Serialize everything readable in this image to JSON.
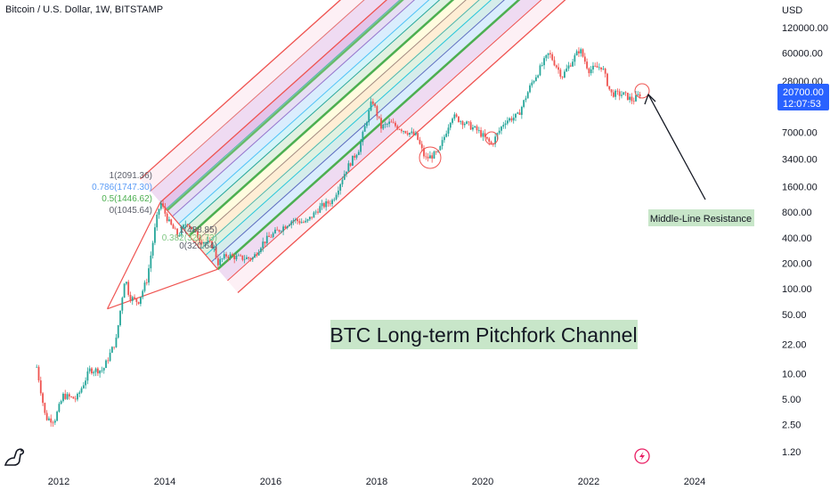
{
  "header": {
    "symbol_title": "Bitcoin / U.S. Dollar, 1W, BITSTAMP",
    "currency": "USD"
  },
  "price_badge": {
    "price": "20700.00",
    "countdown": "12:07:53",
    "color": "#2962ff"
  },
  "annotations": {
    "main_title": "BTC Long-term Pitchfork Channel",
    "callout": "Middle-Line Resistance"
  },
  "fib_labels_upper": [
    {
      "text": "1(2091.36)",
      "color": "#5d606b"
    },
    {
      "text": "0.786(1747.30)",
      "color": "#5b9cf6"
    },
    {
      "text": "0.5(1446.62)",
      "color": "#4caf50"
    },
    {
      "text": "0(1045.64)",
      "color": "#5d606b"
    }
  ],
  "fib_labels_lower": [
    {
      "text": "1(488.85)",
      "color": "#5d606b"
    },
    {
      "text": "0.382(320.73)",
      "color": "#81c784"
    },
    {
      "text": "0(320.64)",
      "color": "#5d606b"
    }
  ],
  "chart_data": {
    "type": "line",
    "title": "Bitcoin / U.S. Dollar, 1W, BITSTAMP",
    "ylabel": "USD",
    "y_scale": "log",
    "ylim": [
      1.0,
      250000
    ],
    "xlim": [
      "2011-06",
      "2025-03"
    ],
    "x_ticks": [
      "2012",
      "2014",
      "2016",
      "2018",
      "2020",
      "2022",
      "2024"
    ],
    "y_ticks": [
      {
        "label": "120000.00",
        "value": 120000
      },
      {
        "label": "60000.00",
        "value": 60000
      },
      {
        "label": "28000.00",
        "value": 28000
      },
      {
        "label": "7000.00",
        "value": 7000
      },
      {
        "label": "3400.00",
        "value": 3400
      },
      {
        "label": "1600.00",
        "value": 1600
      },
      {
        "label": "800.00",
        "value": 800
      },
      {
        "label": "400.00",
        "value": 400
      },
      {
        "label": "200.00",
        "value": 200
      },
      {
        "label": "100.00",
        "value": 100
      },
      {
        "label": "50.00",
        "value": 50
      },
      {
        "label": "22.00",
        "value": 22
      },
      {
        "label": "10.00",
        "value": 10
      },
      {
        "label": "5.00",
        "value": 5
      },
      {
        "label": "2.50",
        "value": 2.5
      },
      {
        "label": "1.20",
        "value": 1.2
      }
    ],
    "series": [
      {
        "values": [
          [
            "2011-08",
            12
          ],
          [
            "2011-10",
            3
          ],
          [
            "2011-12",
            2.8
          ],
          [
            "2012-02",
            5.5
          ],
          [
            "2012-05",
            5
          ],
          [
            "2012-08",
            11
          ],
          [
            "2012-11",
            11
          ],
          [
            "2013-02",
            25
          ],
          [
            "2013-04",
            140
          ],
          [
            "2013-05",
            80
          ],
          [
            "2013-07",
            70
          ],
          [
            "2013-09",
            130
          ],
          [
            "2013-11",
            600
          ],
          [
            "2013-12",
            1050
          ],
          [
            "2014-02",
            600
          ],
          [
            "2014-04",
            420
          ],
          [
            "2014-06",
            620
          ],
          [
            "2014-09",
            380
          ],
          [
            "2014-12",
            320
          ],
          [
            "2015-01",
            200
          ],
          [
            "2015-03",
            250
          ],
          [
            "2015-06",
            230
          ],
          [
            "2015-09",
            230
          ],
          [
            "2015-11",
            340
          ],
          [
            "2016-01",
            420
          ],
          [
            "2016-06",
            650
          ],
          [
            "2016-09",
            600
          ],
          [
            "2016-12",
            900
          ],
          [
            "2017-03",
            1100
          ],
          [
            "2017-06",
            2500
          ],
          [
            "2017-09",
            4500
          ],
          [
            "2017-12",
            17000
          ],
          [
            "2018-02",
            8000
          ],
          [
            "2018-04",
            9000
          ],
          [
            "2018-07",
            7500
          ],
          [
            "2018-10",
            6300
          ],
          [
            "2018-12",
            3400
          ],
          [
            "2019-03",
            4000
          ],
          [
            "2019-06",
            11000
          ],
          [
            "2019-09",
            9000
          ],
          [
            "2019-12",
            7200
          ],
          [
            "2020-03",
            5000
          ],
          [
            "2020-06",
            9500
          ],
          [
            "2020-09",
            11000
          ],
          [
            "2020-12",
            26000
          ],
          [
            "2021-04",
            60000
          ],
          [
            "2021-07",
            32000
          ],
          [
            "2021-11",
            67000
          ],
          [
            "2022-01",
            38000
          ],
          [
            "2022-04",
            42000
          ],
          [
            "2022-06",
            20000
          ],
          [
            "2022-09",
            19500
          ],
          [
            "2022-11",
            16500
          ],
          [
            "2023-01",
            20700
          ]
        ]
      }
    ],
    "pitchfork": {
      "pivots": [
        [
          "2012-12",
          58
        ],
        [
          "2013-12",
          1045.64
        ],
        [
          "2015-01",
          170
        ]
      ],
      "fib_levels": [
        0,
        0.382,
        0.5,
        0.618,
        0.786,
        1
      ]
    }
  }
}
